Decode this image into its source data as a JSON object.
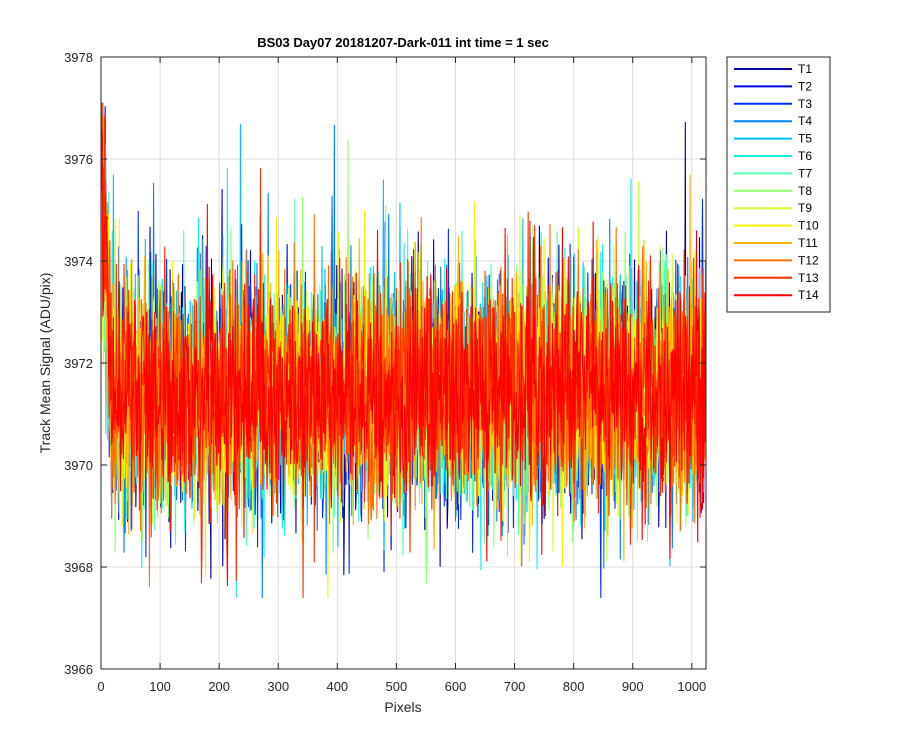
{
  "chart_data": {
    "type": "line",
    "title": "BS03 Day07 20181207-Dark-011 int time = 1 sec",
    "xlabel": "Pixels",
    "ylabel": "Track Mean Signal (ADU/pix)",
    "xlim": [
      0,
      1024
    ],
    "ylim": [
      3966,
      3978
    ],
    "xticks": [
      0,
      100,
      200,
      300,
      400,
      500,
      600,
      700,
      800,
      900,
      1000
    ],
    "yticks": [
      3966,
      3968,
      3970,
      3972,
      3974,
      3976,
      3978
    ],
    "grid": true,
    "legend_position": "outside-top-right",
    "noise": {
      "baseline": 3971.4,
      "typical_range": [
        3969.5,
        3975
      ],
      "min_observed": 3967.4,
      "max_observed": 3977.1,
      "start_peak": 3976.8
    },
    "series": [
      {
        "name": "T1",
        "color": "#0000a8"
      },
      {
        "name": "T2",
        "color": "#0000e0"
      },
      {
        "name": "T3",
        "color": "#0030ff"
      },
      {
        "name": "T4",
        "color": "#0080ff"
      },
      {
        "name": "T5",
        "color": "#00bfff"
      },
      {
        "name": "T6",
        "color": "#10f0ef"
      },
      {
        "name": "T7",
        "color": "#50ffaf"
      },
      {
        "name": "T8",
        "color": "#8fff70"
      },
      {
        "name": "T9",
        "color": "#cfff30"
      },
      {
        "name": "T10",
        "color": "#ffef00"
      },
      {
        "name": "T11",
        "color": "#ffb000"
      },
      {
        "name": "T12",
        "color": "#ff7000"
      },
      {
        "name": "T13",
        "color": "#ff3000"
      },
      {
        "name": "T14",
        "color": "#ff0000"
      }
    ]
  }
}
